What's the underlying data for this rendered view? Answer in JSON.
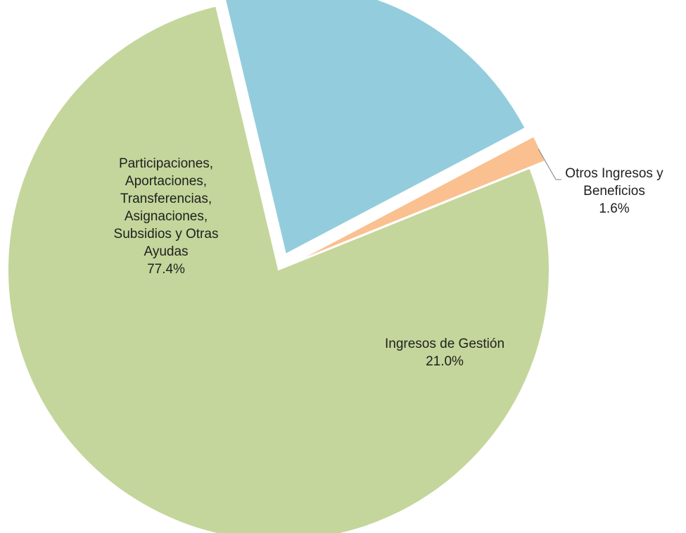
{
  "chart_data": {
    "type": "pie",
    "title": "",
    "slices": [
      {
        "label_lines": [
          "Participaciones,",
          "Aportaciones,",
          "Transferencias,",
          "Asignaciones,",
          "Subsidios y Otras",
          "Ayudas"
        ],
        "value": 77.4,
        "value_label": "77.4%",
        "color": "#c4d69b"
      },
      {
        "label_lines": [
          "Ingresos de Gestión"
        ],
        "value": 21.0,
        "value_label": "21.0%",
        "color": "#93cddd"
      },
      {
        "label_lines": [
          "Otros Ingresos y",
          "Beneficios"
        ],
        "value": 1.6,
        "value_label": "1.6%",
        "color": "#fac090"
      }
    ],
    "legend": "none"
  }
}
